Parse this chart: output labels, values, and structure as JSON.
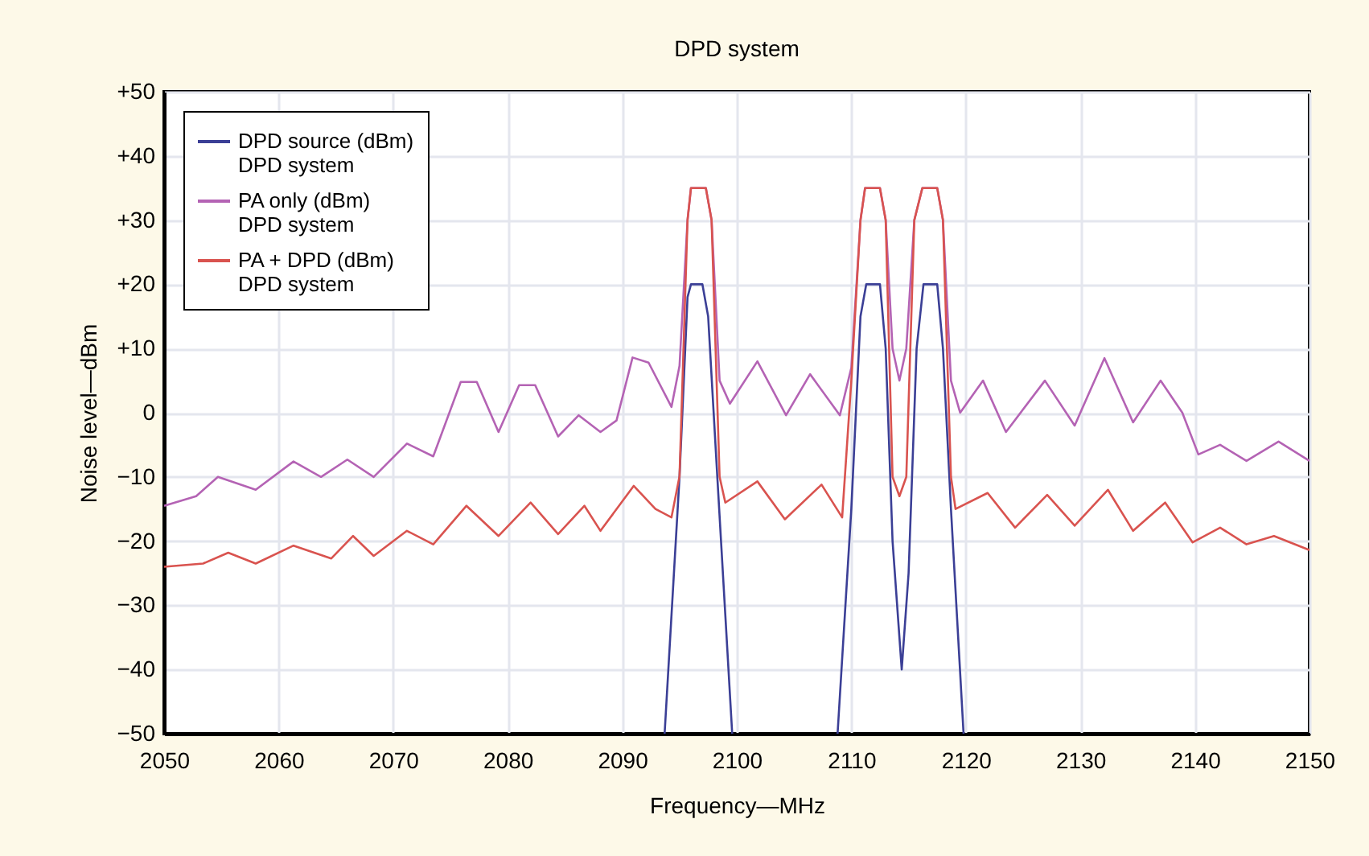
{
  "chart_data": {
    "type": "line",
    "title": "DPD system",
    "xlabel": "Frequency—MHz",
    "ylabel": "Noise level—dBm",
    "xlim": [
      2050,
      2150
    ],
    "ylim": [
      -50,
      50
    ],
    "xticks": [
      2050,
      2060,
      2070,
      2080,
      2090,
      2100,
      2110,
      2120,
      2130,
      2140,
      2150
    ],
    "yticks": [
      {
        "value": -50,
        "label": "−50"
      },
      {
        "value": -40,
        "label": "−40"
      },
      {
        "value": -30,
        "label": "−30"
      },
      {
        "value": -20,
        "label": "−20"
      },
      {
        "value": -10,
        "label": "−10"
      },
      0,
      {
        "value": 10,
        "label": "+10"
      },
      {
        "value": 20,
        "label": "+20"
      },
      {
        "value": 30,
        "label": "+30"
      },
      {
        "value": 40,
        "label": "+40"
      },
      {
        "value": 50,
        "label": "+50"
      }
    ],
    "grid": true,
    "legend": "top left",
    "line_style": "solid",
    "marker": "none",
    "series": [
      {
        "name": "DPD source (dBm)\nDPD system",
        "color": "#3b3f96",
        "x": [
          2093.7,
          2095,
          2095.7,
          2096,
          2097,
          2097.5,
          2098.3,
          2099.6,
          2104,
          2108.8,
          2110,
          2110.8,
          2111.3,
          2112.5,
          2113,
          2113.6,
          2114.4,
          2115,
          2115.7,
          2116.3,
          2117.5,
          2118,
          2118.7,
          2119.8
        ],
        "values": [
          -50,
          -10,
          18,
          20,
          20,
          15,
          -10,
          -50,
          null,
          -50,
          -15,
          15,
          20,
          20,
          10,
          -20,
          -40,
          -25,
          10,
          20,
          20,
          10,
          -15,
          -50
        ]
      },
      {
        "name": "PA only (dBm)\nDPD system",
        "color": "#b463b4",
        "x": [
          2050,
          2052.8,
          2054.7,
          2058,
          2061.3,
          2063.7,
          2066,
          2068.3,
          2071.2,
          2073.5,
          2075.9,
          2077.3,
          2079.2,
          2081,
          2082.4,
          2084.4,
          2086.2,
          2088.1,
          2089.5,
          2090.9,
          2092.3,
          2094.3,
          2095,
          2095.7,
          2096,
          2097.3,
          2097.8,
          2098.5,
          2099.4,
          2101.8,
          2104.3,
          2106.4,
          2109,
          2110,
          2110.8,
          2111.2,
          2112.5,
          2113,
          2113.6,
          2114.2,
          2114.8,
          2115.5,
          2116.2,
          2117.5,
          2118,
          2118.7,
          2119.5,
          2121.5,
          2123.5,
          2126.9,
          2129.5,
          2132.1,
          2134.6,
          2137,
          2138.9,
          2140.3,
          2142.2,
          2144.5,
          2147.3,
          2150
        ],
        "values": [
          -14.5,
          -13,
          -10,
          -12,
          -7.6,
          -10,
          -7.3,
          -10,
          -4.8,
          -6.8,
          4.8,
          4.8,
          -3,
          4.3,
          4.3,
          -3.7,
          -0.4,
          -3,
          -1.2,
          8.6,
          7.8,
          0.9,
          7.3,
          30,
          35,
          35,
          30,
          5,
          1.4,
          8,
          -0.4,
          6,
          -0.4,
          7,
          30,
          35,
          35,
          30,
          10,
          5,
          10,
          30,
          35,
          35,
          30,
          5,
          0,
          5,
          -3,
          5,
          -2,
          8.5,
          -1.5,
          5,
          0,
          -6.5,
          -5,
          -7.5,
          -4.5,
          -7.5
        ]
      },
      {
        "name": "PA + DPD (dBm)\nDPD system",
        "color": "#d9534f",
        "x": [
          2050,
          2053.4,
          2055.6,
          2058,
          2061.3,
          2064.6,
          2066.5,
          2068.3,
          2071.2,
          2073.5,
          2076.4,
          2079.2,
          2082,
          2084.4,
          2086.7,
          2088.1,
          2091,
          2092.9,
          2094.3,
          2095,
          2095.7,
          2096,
          2097.3,
          2097.8,
          2098.5,
          2099,
          2101.8,
          2104.2,
          2107.4,
          2109.2,
          2110,
          2110.8,
          2111.2,
          2112.5,
          2113,
          2113.6,
          2114.2,
          2114.8,
          2115.5,
          2116.2,
          2117.5,
          2118,
          2118.7,
          2119.1,
          2121.9,
          2124.3,
          2127.1,
          2129.5,
          2132.4,
          2134.6,
          2137.4,
          2139.8,
          2142.2,
          2144.5,
          2146.9,
          2150
        ],
        "values": [
          -24,
          -23.5,
          -21.8,
          -23.5,
          -20.7,
          -22.7,
          -19.2,
          -22.3,
          -18.4,
          -20.5,
          -14.5,
          -19.2,
          -14,
          -18.9,
          -14.5,
          -18.4,
          -11.4,
          -15,
          -16.3,
          -9.9,
          30,
          35,
          35,
          30,
          -10,
          -14,
          -10.7,
          -16.6,
          -11.2,
          -16.3,
          5,
          30,
          35,
          35,
          30,
          -10,
          -13,
          -10,
          30,
          35,
          35,
          30,
          -10,
          -15,
          -12.5,
          -17.9,
          -12.8,
          -17.6,
          -12,
          -18.4,
          -14,
          -20.2,
          -17.9,
          -20.5,
          -19.2,
          -21.4
        ]
      }
    ]
  }
}
